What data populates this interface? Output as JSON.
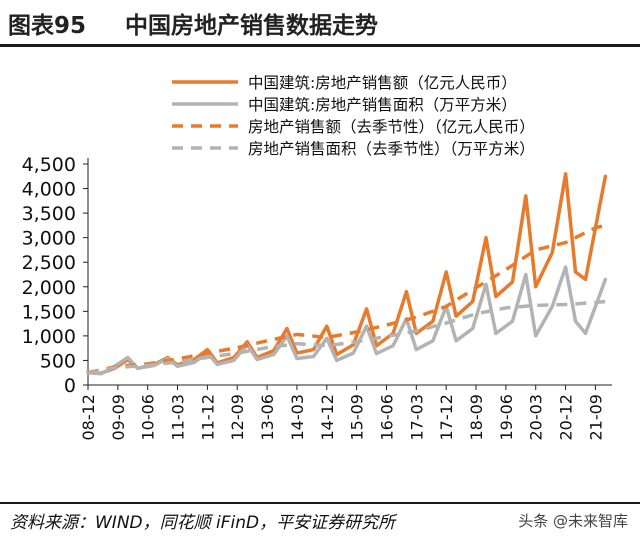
{
  "header": {
    "figure_number": "图表95",
    "title": "中国房地产销售数据走势"
  },
  "source": "资料来源：WIND，同花顺 iFinD，平安证券研究所",
  "watermark": "头条 @未来智库",
  "colors": {
    "orange": "#E87A2C",
    "gray": "#B3B3B3",
    "axis": "#222222"
  },
  "chart_data": {
    "type": "line",
    "ylim": [
      0,
      4500
    ],
    "yticks": [
      0,
      500,
      1000,
      1500,
      2000,
      2500,
      3000,
      3500,
      4000,
      4500
    ],
    "ytick_labels": [
      "0",
      "500",
      "1,000",
      "1,500",
      "2,000",
      "2,500",
      "3,000",
      "3,500",
      "4,000",
      "4,500"
    ],
    "xticks": [
      "08-12",
      "09-09",
      "10-06",
      "11-03",
      "11-12",
      "12-09",
      "13-06",
      "14-03",
      "14-12",
      "15-09",
      "16-06",
      "17-03",
      "17-12",
      "18-09",
      "19-06",
      "20-03",
      "20-12",
      "21-09"
    ],
    "x_start": "2008-12",
    "legend_position": "top-right",
    "series": [
      {
        "name": "中国建筑:房地产销售额（亿元人民币）",
        "style": "solid",
        "color": "orange",
        "points": [
          [
            "2008-12",
            260
          ],
          [
            "2009-04",
            240
          ],
          [
            "2009-08",
            340
          ],
          [
            "2009-12",
            520
          ],
          [
            "2010-03",
            340
          ],
          [
            "2010-08",
            420
          ],
          [
            "2010-12",
            560
          ],
          [
            "2011-03",
            410
          ],
          [
            "2011-08",
            520
          ],
          [
            "2011-12",
            720
          ],
          [
            "2012-03",
            450
          ],
          [
            "2012-08",
            560
          ],
          [
            "2012-12",
            880
          ],
          [
            "2013-03",
            560
          ],
          [
            "2013-08",
            700
          ],
          [
            "2013-12",
            1150
          ],
          [
            "2014-03",
            650
          ],
          [
            "2014-08",
            720
          ],
          [
            "2014-12",
            1200
          ],
          [
            "2015-03",
            620
          ],
          [
            "2015-08",
            820
          ],
          [
            "2015-12",
            1550
          ],
          [
            "2016-03",
            800
          ],
          [
            "2016-08",
            1050
          ],
          [
            "2016-12",
            1900
          ],
          [
            "2017-03",
            1050
          ],
          [
            "2017-08",
            1300
          ],
          [
            "2017-12",
            2300
          ],
          [
            "2018-03",
            1400
          ],
          [
            "2018-08",
            1700
          ],
          [
            "2018-12",
            3000
          ],
          [
            "2019-03",
            1800
          ],
          [
            "2019-08",
            2100
          ],
          [
            "2019-12",
            3850
          ],
          [
            "2020-03",
            2000
          ],
          [
            "2020-08",
            2700
          ],
          [
            "2020-12",
            4300
          ],
          [
            "2021-03",
            2300
          ],
          [
            "2021-06",
            2150
          ],
          [
            "2021-12",
            4250
          ]
        ]
      },
      {
        "name": "中国建筑:房地产销售面积（万平方米）",
        "style": "solid",
        "color": "gray",
        "points": [
          [
            "2008-12",
            250
          ],
          [
            "2009-04",
            230
          ],
          [
            "2009-08",
            380
          ],
          [
            "2009-12",
            560
          ],
          [
            "2010-03",
            340
          ],
          [
            "2010-08",
            400
          ],
          [
            "2010-12",
            540
          ],
          [
            "2011-03",
            380
          ],
          [
            "2011-08",
            460
          ],
          [
            "2011-12",
            650
          ],
          [
            "2012-03",
            420
          ],
          [
            "2012-08",
            500
          ],
          [
            "2012-12",
            820
          ],
          [
            "2013-03",
            520
          ],
          [
            "2013-08",
            620
          ],
          [
            "2013-12",
            1000
          ],
          [
            "2014-03",
            540
          ],
          [
            "2014-08",
            580
          ],
          [
            "2014-12",
            950
          ],
          [
            "2015-03",
            500
          ],
          [
            "2015-08",
            650
          ],
          [
            "2015-12",
            1200
          ],
          [
            "2016-03",
            640
          ],
          [
            "2016-08",
            800
          ],
          [
            "2016-12",
            1350
          ],
          [
            "2017-03",
            720
          ],
          [
            "2017-08",
            900
          ],
          [
            "2017-12",
            1600
          ],
          [
            "2018-03",
            900
          ],
          [
            "2018-08",
            1150
          ],
          [
            "2018-12",
            2050
          ],
          [
            "2019-03",
            1050
          ],
          [
            "2019-08",
            1300
          ],
          [
            "2019-12",
            2250
          ],
          [
            "2020-03",
            1000
          ],
          [
            "2020-08",
            1600
          ],
          [
            "2020-12",
            2400
          ],
          [
            "2021-03",
            1300
          ],
          [
            "2021-06",
            1050
          ],
          [
            "2021-12",
            2150
          ]
        ]
      },
      {
        "name": "房地产销售额（去季节性）（亿元人民币）",
        "style": "dashed",
        "color": "orange",
        "points": [
          [
            "2008-12",
            250
          ],
          [
            "2009-09",
            380
          ],
          [
            "2010-06",
            430
          ],
          [
            "2011-03",
            530
          ],
          [
            "2011-12",
            650
          ],
          [
            "2012-09",
            760
          ],
          [
            "2013-06",
            900
          ],
          [
            "2014-03",
            1030
          ],
          [
            "2014-12",
            970
          ],
          [
            "2015-09",
            1080
          ],
          [
            "2016-06",
            1220
          ],
          [
            "2017-03",
            1380
          ],
          [
            "2017-12",
            1600
          ],
          [
            "2018-09",
            1980
          ],
          [
            "2019-06",
            2350
          ],
          [
            "2020-03",
            2750
          ],
          [
            "2020-12",
            2900
          ],
          [
            "2021-09",
            3200
          ],
          [
            "2021-12",
            3250
          ]
        ]
      },
      {
        "name": "房地产销售面积（去季节性）（万平方米）",
        "style": "dashed",
        "color": "gray",
        "points": [
          [
            "2008-12",
            240
          ],
          [
            "2009-09",
            360
          ],
          [
            "2010-06",
            400
          ],
          [
            "2011-03",
            470
          ],
          [
            "2011-12",
            560
          ],
          [
            "2012-09",
            650
          ],
          [
            "2013-06",
            760
          ],
          [
            "2014-03",
            840
          ],
          [
            "2014-12",
            800
          ],
          [
            "2015-09",
            880
          ],
          [
            "2016-06",
            990
          ],
          [
            "2017-03",
            1100
          ],
          [
            "2017-12",
            1260
          ],
          [
            "2018-09",
            1450
          ],
          [
            "2019-06",
            1570
          ],
          [
            "2020-03",
            1620
          ],
          [
            "2020-12",
            1640
          ],
          [
            "2021-09",
            1680
          ],
          [
            "2021-12",
            1700
          ]
        ]
      }
    ]
  }
}
